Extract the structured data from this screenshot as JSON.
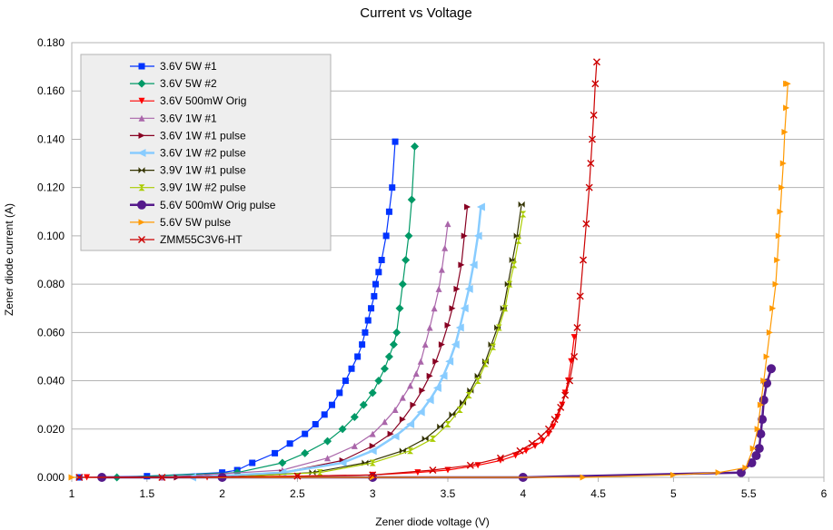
{
  "chart_data": {
    "type": "scatter",
    "title": "Current vs Voltage",
    "xlabel": "Zener diode voltage (V)",
    "ylabel": "Zener diode current (A)",
    "xlim": [
      1,
      6
    ],
    "ylim": [
      0,
      0.18
    ],
    "xticks": [
      "1",
      "1.5",
      "2",
      "2.5",
      "3",
      "3.5",
      "4",
      "4.5",
      "5",
      "5.5",
      "6"
    ],
    "yticks": [
      "0.000",
      "0.020",
      "0.040",
      "0.060",
      "0.080",
      "0.100",
      "0.120",
      "0.140",
      "0.160",
      "0.180"
    ],
    "grid": "horizontal",
    "legend_position": "top-left",
    "series": [
      {
        "name": "3.6V 5W #1",
        "color": "#0033ff",
        "marker": "square",
        "x": [
          1.05,
          1.5,
          2.0,
          2.1,
          2.2,
          2.35,
          2.45,
          2.55,
          2.62,
          2.68,
          2.73,
          2.78,
          2.82,
          2.86,
          2.9,
          2.93,
          2.95,
          2.97,
          2.99,
          3.01,
          3.02,
          3.04,
          3.06,
          3.09,
          3.11,
          3.13,
          3.15
        ],
        "y": [
          0.0,
          0.0005,
          0.002,
          0.003,
          0.006,
          0.01,
          0.014,
          0.018,
          0.022,
          0.026,
          0.03,
          0.035,
          0.04,
          0.045,
          0.05,
          0.055,
          0.06,
          0.065,
          0.07,
          0.075,
          0.08,
          0.085,
          0.09,
          0.1,
          0.11,
          0.12,
          0.139
        ]
      },
      {
        "name": "3.6V 5W #2",
        "color": "#009966",
        "marker": "diamond",
        "x": [
          1.3,
          2.1,
          2.4,
          2.55,
          2.7,
          2.8,
          2.88,
          2.94,
          3.0,
          3.04,
          3.08,
          3.11,
          3.14,
          3.16,
          3.18,
          3.2,
          3.22,
          3.24,
          3.26,
          3.28
        ],
        "y": [
          0.0,
          0.002,
          0.006,
          0.01,
          0.015,
          0.02,
          0.025,
          0.03,
          0.035,
          0.04,
          0.045,
          0.05,
          0.055,
          0.06,
          0.07,
          0.08,
          0.09,
          0.1,
          0.115,
          0.137
        ]
      },
      {
        "name": "3.6V 500mW Orig",
        "color": "#ff0000",
        "marker": "triangle-down",
        "x": [
          1.1,
          1.9,
          2.5,
          3.0,
          3.3,
          3.5,
          3.7,
          3.85,
          3.95,
          4.02,
          4.08,
          4.13,
          4.17,
          4.2,
          4.23,
          4.26,
          4.28,
          4.3,
          4.32,
          4.34
        ],
        "y": [
          0.0,
          0.0,
          0.0005,
          0.001,
          0.002,
          0.003,
          0.005,
          0.007,
          0.009,
          0.011,
          0.013,
          0.015,
          0.018,
          0.021,
          0.025,
          0.03,
          0.035,
          0.04,
          0.048,
          0.058
        ]
      },
      {
        "name": "3.6V 1W #1",
        "color": "#aa66aa",
        "marker": "triangle-up",
        "x": [
          1.6,
          2.4,
          2.7,
          2.88,
          3.0,
          3.08,
          3.15,
          3.2,
          3.25,
          3.29,
          3.32,
          3.35,
          3.38,
          3.41,
          3.44,
          3.46,
          3.48,
          3.5
        ],
        "y": [
          0.0,
          0.003,
          0.008,
          0.013,
          0.018,
          0.023,
          0.028,
          0.033,
          0.038,
          0.043,
          0.048,
          0.055,
          0.062,
          0.07,
          0.078,
          0.086,
          0.095,
          0.105
        ]
      },
      {
        "name": "3.6V 1W #1 pulse",
        "color": "#880022",
        "marker": "triangle-right",
        "x": [
          1.7,
          2.4,
          2.8,
          3.0,
          3.12,
          3.2,
          3.27,
          3.33,
          3.38,
          3.42,
          3.46,
          3.5,
          3.53,
          3.56,
          3.59,
          3.61,
          3.63
        ],
        "y": [
          0.0,
          0.002,
          0.007,
          0.013,
          0.018,
          0.024,
          0.03,
          0.036,
          0.042,
          0.048,
          0.055,
          0.063,
          0.07,
          0.078,
          0.088,
          0.1,
          0.112
        ]
      },
      {
        "name": "3.6V 1W #2 pulse",
        "color": "#88ccff",
        "marker": "arrow-left",
        "x": [
          1.8,
          2.4,
          2.8,
          3.0,
          3.15,
          3.25,
          3.32,
          3.38,
          3.43,
          3.47,
          3.51,
          3.55,
          3.58,
          3.61,
          3.64,
          3.67,
          3.7,
          3.72
        ],
        "y": [
          0.0,
          0.002,
          0.006,
          0.011,
          0.017,
          0.022,
          0.027,
          0.032,
          0.037,
          0.042,
          0.048,
          0.055,
          0.062,
          0.07,
          0.078,
          0.088,
          0.1,
          0.112
        ]
      },
      {
        "name": "3.9V 1W #1 pulse",
        "color": "#333300",
        "marker": "bowtie",
        "x": [
          2.0,
          2.6,
          2.95,
          3.2,
          3.35,
          3.45,
          3.53,
          3.6,
          3.65,
          3.7,
          3.75,
          3.79,
          3.83,
          3.87,
          3.9,
          3.93,
          3.96,
          3.99
        ],
        "y": [
          0.0,
          0.002,
          0.006,
          0.011,
          0.016,
          0.021,
          0.026,
          0.031,
          0.036,
          0.042,
          0.048,
          0.055,
          0.062,
          0.07,
          0.08,
          0.09,
          0.1,
          0.113
        ]
      },
      {
        "name": "3.9V 1W #2 pulse",
        "color": "#aacc00",
        "marker": "hourglass",
        "x": [
          2.0,
          2.65,
          3.0,
          3.25,
          3.4,
          3.5,
          3.58,
          3.64,
          3.7,
          3.75,
          3.8,
          3.84,
          3.88,
          3.91,
          3.94,
          3.97,
          4.0
        ],
        "y": [
          0.0,
          0.002,
          0.006,
          0.011,
          0.016,
          0.022,
          0.028,
          0.034,
          0.04,
          0.047,
          0.054,
          0.062,
          0.07,
          0.08,
          0.088,
          0.098,
          0.109
        ]
      },
      {
        "name": "5.6V 500mW Orig pulse",
        "color": "#551a8b",
        "marker": "circle",
        "x": [
          1.2,
          2.0,
          3.0,
          4.0,
          5.45,
          5.52,
          5.55,
          5.57,
          5.58,
          5.59,
          5.6,
          5.62,
          5.65
        ],
        "y": [
          0.0,
          0.0,
          0.0,
          0.0,
          0.002,
          0.006,
          0.009,
          0.012,
          0.018,
          0.024,
          0.032,
          0.039,
          0.045
        ]
      },
      {
        "name": "5.6V 5W pulse",
        "color": "#ff9900",
        "marker": "triangle-right",
        "x": [
          1.0,
          3.0,
          4.4,
          5.0,
          5.3,
          5.48,
          5.53,
          5.56,
          5.58,
          5.6,
          5.62,
          5.64,
          5.66,
          5.68,
          5.69,
          5.7,
          5.71,
          5.72,
          5.73,
          5.74,
          5.75,
          5.76,
          5.75
        ],
        "y": [
          0.0,
          0.0,
          0.0,
          0.001,
          0.002,
          0.004,
          0.012,
          0.02,
          0.03,
          0.04,
          0.05,
          0.06,
          0.07,
          0.08,
          0.09,
          0.1,
          0.11,
          0.12,
          0.13,
          0.143,
          0.153,
          0.163,
          0.163
        ]
      },
      {
        "name": "ZMM55C3V6-HT",
        "color": "#cc0000",
        "marker": "x",
        "x": [
          1.05,
          1.6,
          2.5,
          3.0,
          3.4,
          3.65,
          3.85,
          3.98,
          4.06,
          4.12,
          4.17,
          4.21,
          4.25,
          4.28,
          4.31,
          4.34,
          4.36,
          4.38,
          4.4,
          4.42,
          4.44,
          4.45,
          4.46,
          4.47,
          4.48,
          4.49
        ],
        "y": [
          0.0,
          0.0,
          0.0005,
          0.001,
          0.003,
          0.005,
          0.008,
          0.011,
          0.014,
          0.017,
          0.02,
          0.024,
          0.029,
          0.034,
          0.04,
          0.05,
          0.062,
          0.075,
          0.09,
          0.105,
          0.12,
          0.13,
          0.14,
          0.15,
          0.163,
          0.172
        ]
      }
    ]
  }
}
